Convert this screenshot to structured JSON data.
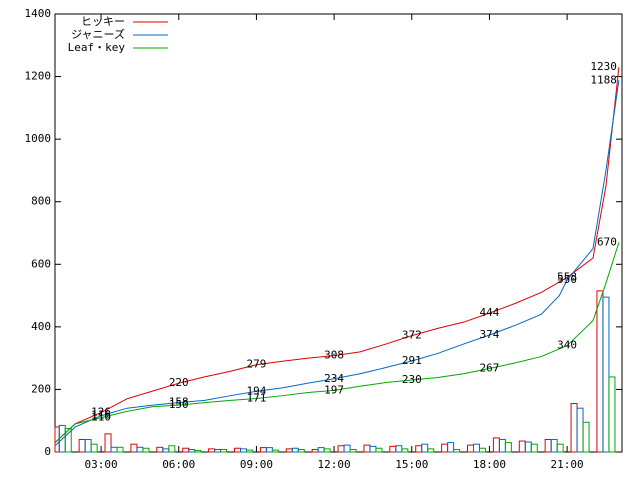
{
  "chart_data": {
    "type": "line",
    "xlim": [
      1.22,
      23.12
    ],
    "ylim": [
      0,
      1400
    ],
    "xticks": [
      {
        "value": 3,
        "label": "03:00"
      },
      {
        "value": 6,
        "label": "06:00"
      },
      {
        "value": 9,
        "label": "09:00"
      },
      {
        "value": 12,
        "label": "12:00"
      },
      {
        "value": 15,
        "label": "15:00"
      },
      {
        "value": 18,
        "label": "18:00"
      },
      {
        "value": 21,
        "label": "21:00"
      }
    ],
    "yticks": [
      0,
      200,
      400,
      600,
      800,
      1000,
      1200,
      1400
    ],
    "legend": "top-left",
    "bar_x": [
      1,
      2,
      3,
      4,
      5,
      6,
      7,
      8,
      9,
      10,
      11,
      12,
      13,
      14,
      15,
      16,
      17,
      18,
      19,
      20,
      21,
      22
    ],
    "series": [
      {
        "name": "ヒッキー",
        "color": "#e00000",
        "x": [
          1.22,
          2,
          3,
          4,
          5,
          6,
          7,
          8,
          9,
          10,
          11,
          12,
          13,
          14,
          15,
          16,
          17,
          18,
          19,
          20,
          21,
          22,
          22.5,
          23
        ],
        "values": [
          30,
          90,
          126,
          170,
          195,
          220,
          240,
          258,
          279,
          290,
          300,
          308,
          320,
          345,
          372,
          395,
          415,
          444,
          475,
          510,
          558,
          620,
          850,
          1230
        ],
        "bar_values": [
          80,
          40,
          58,
          25,
          15,
          12,
          10,
          12,
          14,
          10,
          8,
          20,
          22,
          18,
          20,
          25,
          22,
          45,
          35,
          40,
          155,
          515
        ]
      },
      {
        "name": "ジャニーズ",
        "color": "#0068c8",
        "x": [
          1.22,
          2,
          3,
          4,
          5,
          6,
          7,
          8,
          9,
          10,
          11,
          12,
          13,
          14,
          15,
          16,
          17,
          18,
          19,
          20,
          20.7,
          21,
          22,
          22.5,
          23
        ],
        "values": [
          20,
          80,
          116,
          140,
          150,
          158,
          165,
          180,
          194,
          205,
          220,
          234,
          250,
          270,
          291,
          315,
          345,
          374,
          405,
          440,
          500,
          550,
          650,
          900,
          1188
        ],
        "bar_values": [
          85,
          40,
          15,
          15,
          10,
          8,
          8,
          10,
          14,
          12,
          14,
          22,
          18,
          20,
          25,
          30,
          25,
          40,
          32,
          40,
          140,
          495
        ]
      },
      {
        "name": "Leaf・key",
        "color": "#00a800",
        "x": [
          1.22,
          2,
          3,
          4,
          5,
          6,
          7,
          8,
          9,
          10,
          11,
          12,
          13,
          14,
          15,
          16,
          17,
          18,
          19,
          20,
          21,
          22,
          22.5,
          23
        ],
        "values": [
          30,
          90,
          110,
          130,
          145,
          150,
          158,
          165,
          171,
          180,
          190,
          197,
          210,
          222,
          230,
          238,
          250,
          267,
          285,
          305,
          340,
          420,
          540,
          670
        ],
        "bar_values": [
          75,
          25,
          15,
          12,
          20,
          5,
          8,
          6,
          6,
          8,
          10,
          8,
          12,
          10,
          10,
          8,
          12,
          30,
          25,
          25,
          95,
          240
        ]
      }
    ]
  }
}
